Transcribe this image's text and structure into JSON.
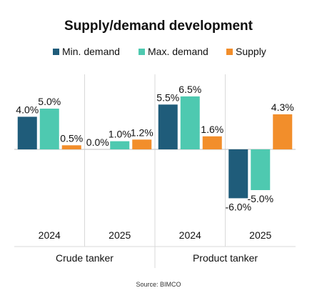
{
  "chart_data": {
    "type": "bar",
    "title": "Supply/demand development",
    "source": "Source: BIMCO",
    "y_unit": "%",
    "ylim": [
      -8,
      8
    ],
    "grid": false,
    "legend_position": "top",
    "groups": [
      {
        "label": "Crude tanker",
        "years": [
          "2024",
          "2025"
        ]
      },
      {
        "label": "Product tanker",
        "years": [
          "2024",
          "2025"
        ]
      }
    ],
    "categories": [
      "2024",
      "2025",
      "2024",
      "2025"
    ],
    "series": [
      {
        "name": "Min. demand",
        "color": "#1f5c7a",
        "values": [
          4.0,
          0.0,
          5.5,
          -6.0
        ],
        "labels": [
          "4.0%",
          "0.0%",
          "5.5%",
          "-6.0%"
        ]
      },
      {
        "name": "Max. demand",
        "color": "#4ec9b0",
        "values": [
          5.0,
          1.0,
          6.5,
          -5.0
        ],
        "labels": [
          "5.0%",
          "1.0%",
          "6.5%",
          "-5.0%"
        ]
      },
      {
        "name": "Supply",
        "color": "#f28e2b",
        "values": [
          0.5,
          1.2,
          1.6,
          4.3
        ],
        "labels": [
          "0.5%",
          "1.2%",
          "1.6%",
          "4.3%"
        ]
      }
    ]
  }
}
